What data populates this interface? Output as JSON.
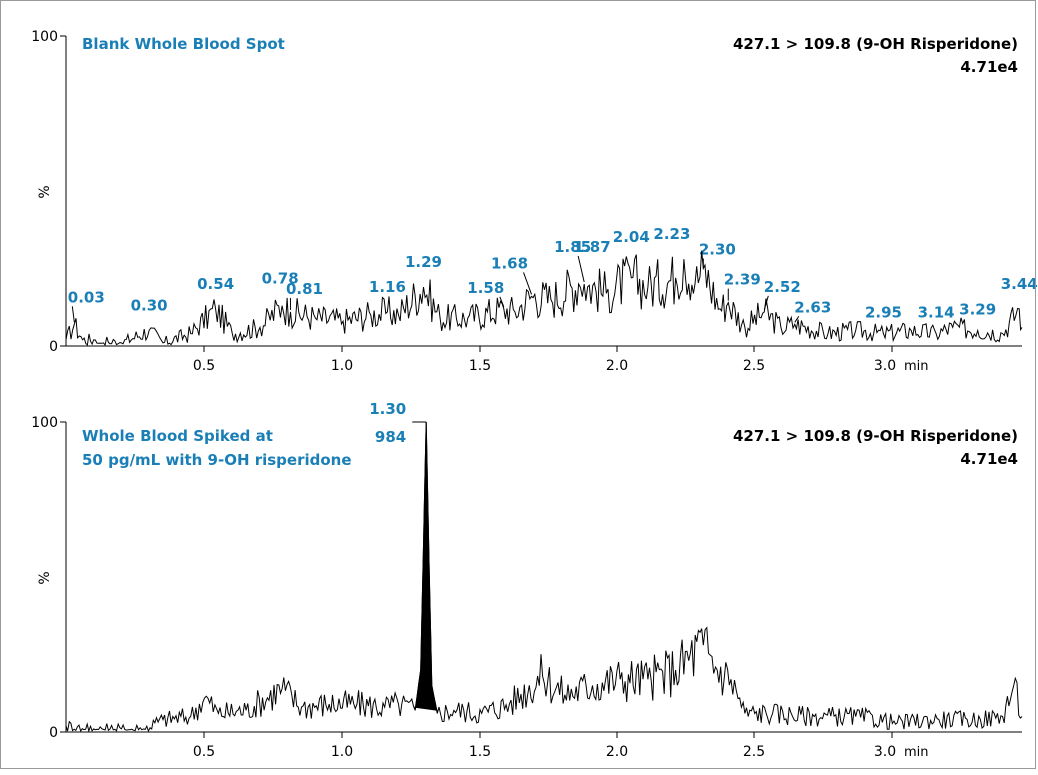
{
  "chart_data": [
    {
      "type": "line",
      "title": "",
      "sample_title_lines": [
        "Blank Whole Blood Spot"
      ],
      "transition": "427.1 > 109.8 (9-OH Risperidone)",
      "intensity": "4.71e4",
      "xlabel": "",
      "ylabel": "%",
      "xlim": [
        0.0,
        3.45
      ],
      "ylim": [
        0,
        100
      ],
      "x_ticks": [
        "0.5",
        "1.0",
        "1.5",
        "2.0",
        "2.5",
        "3.0"
      ],
      "x_unit": "min",
      "y_ticks": [
        "0",
        "%",
        "100"
      ],
      "series": [
        {
          "x": [
            0.0,
            0.03,
            0.06,
            0.1,
            0.2,
            0.3,
            0.35,
            0.45,
            0.54,
            0.6,
            0.7,
            0.78,
            0.81,
            0.9,
            1.0,
            1.1,
            1.16,
            1.2,
            1.29,
            1.35,
            1.45,
            1.58,
            1.62,
            1.68,
            1.75,
            1.85,
            1.87,
            1.95,
            2.04,
            2.1,
            2.2,
            2.23,
            2.27,
            2.3,
            2.36,
            2.39,
            2.45,
            2.52,
            2.58,
            2.63,
            2.75,
            2.85,
            2.95,
            3.05,
            3.14,
            3.2,
            3.29,
            3.38,
            3.44,
            3.45
          ],
          "y": [
            2,
            7,
            2,
            2,
            1,
            5,
            1,
            4,
            12,
            4,
            6,
            13,
            11,
            9,
            8,
            10,
            11,
            10,
            19,
            9,
            9,
            12,
            11,
            16,
            15,
            20,
            20,
            17,
            22,
            19,
            22,
            28,
            20,
            25,
            12,
            14,
            6,
            11,
            6,
            7,
            4,
            5,
            4,
            5,
            4,
            6,
            5,
            4,
            12,
            6
          ]
        }
      ],
      "peak_labels": [
        {
          "label": "0.03",
          "x": 0.03,
          "y": 7
        },
        {
          "label": "0.30",
          "x": 0.3,
          "y": 5
        },
        {
          "label": "0.54",
          "x": 0.54,
          "y": 12
        },
        {
          "label": "0.78",
          "x": 0.78,
          "y": 13
        },
        {
          "label": "0.81",
          "x": 0.81,
          "y": 11
        },
        {
          "label": "1.16",
          "x": 1.16,
          "y": 11
        },
        {
          "label": "1.29",
          "x": 1.29,
          "y": 19
        },
        {
          "label": "1.58",
          "x": 1.58,
          "y": 12
        },
        {
          "label": "1.68",
          "x": 1.68,
          "y": 16
        },
        {
          "label": "1.85",
          "x": 1.85,
          "y": 20
        },
        {
          "label": "1.87",
          "x": 1.87,
          "y": 20
        },
        {
          "label": "2.04",
          "x": 2.04,
          "y": 22
        },
        {
          "label": "2.23",
          "x": 2.23,
          "y": 28
        },
        {
          "label": "2.30",
          "x": 2.3,
          "y": 25
        },
        {
          "label": "2.39",
          "x": 2.39,
          "y": 14
        },
        {
          "label": "2.52",
          "x": 2.52,
          "y": 11
        },
        {
          "label": "2.63",
          "x": 2.63,
          "y": 7
        },
        {
          "label": "2.95",
          "x": 2.95,
          "y": 4
        },
        {
          "label": "3.14",
          "x": 3.14,
          "y": 4
        },
        {
          "label": "3.29",
          "x": 3.29,
          "y": 5
        },
        {
          "label": "3.44",
          "x": 3.44,
          "y": 12
        }
      ]
    },
    {
      "type": "line",
      "title": "",
      "sample_title_lines": [
        "Whole Blood Spiked at",
        "50 pg/mL with 9-OH risperidone"
      ],
      "transition": "427.1 > 109.8 (9-OH Risperidone)",
      "intensity": "4.71e4",
      "xlabel": "",
      "ylabel": "%",
      "xlim": [
        0.0,
        3.45
      ],
      "ylim": [
        0,
        100
      ],
      "x_ticks": [
        "0.5",
        "1.0",
        "1.5",
        "2.0",
        "2.5",
        "3.0"
      ],
      "x_unit": "min",
      "y_ticks": [
        "0",
        "%",
        "100"
      ],
      "series": [
        {
          "x": [
            0.0,
            0.1,
            0.2,
            0.28,
            0.35,
            0.45,
            0.5,
            0.55,
            0.65,
            0.78,
            0.85,
            0.95,
            1.05,
            1.15,
            1.2,
            1.26,
            1.28,
            1.29,
            1.3,
            1.31,
            1.32,
            1.34,
            1.4,
            1.5,
            1.6,
            1.72,
            1.8,
            1.9,
            2.0,
            2.1,
            2.2,
            2.3,
            2.35,
            2.4,
            2.45,
            2.55,
            2.7,
            2.85,
            3.0,
            3.15,
            3.3,
            3.38,
            3.42,
            3.45
          ],
          "y": [
            2,
            1,
            1,
            1,
            4,
            5,
            11,
            6,
            7,
            14,
            8,
            9,
            9,
            8,
            9,
            7,
            20,
            60,
            100,
            55,
            15,
            6,
            7,
            6,
            9,
            18,
            12,
            15,
            17,
            17,
            20,
            28,
            20,
            17,
            6,
            6,
            5,
            5,
            3,
            4,
            4,
            5,
            15,
            5
          ]
        }
      ],
      "filled_peak": {
        "label": "1.30",
        "area": "984",
        "x_start": 1.26,
        "x_end": 1.34,
        "apex_x": 1.3,
        "apex_y": 100
      },
      "peak_labels": [
        {
          "label": "1.30",
          "x": 1.3,
          "y": 100
        },
        {
          "label": "984",
          "x": 1.3,
          "y": 100
        }
      ]
    }
  ]
}
